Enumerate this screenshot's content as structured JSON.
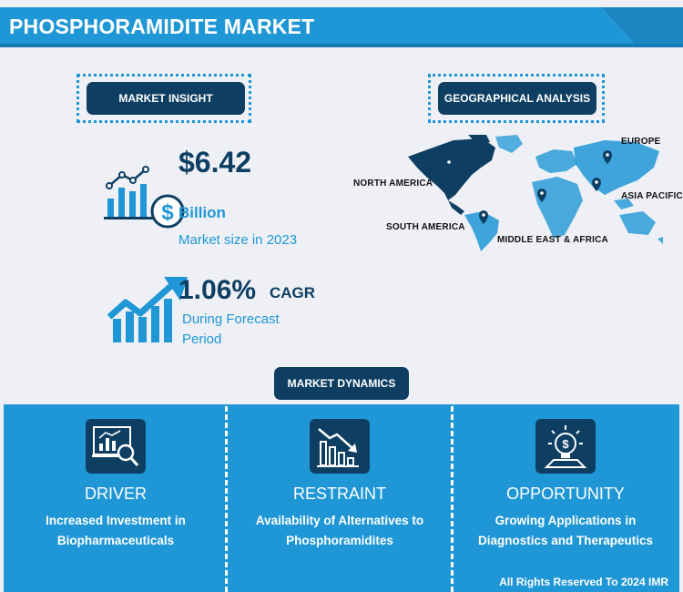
{
  "header": {
    "title": "PHOSPHORAMIDITE MARKET"
  },
  "market_insight": {
    "label": "MARKET INSIGHT",
    "market_size": {
      "value": "$6.42",
      "unit": "Billion",
      "caption": "Market size in 2023",
      "icon": "bar-chart-dollar-icon"
    },
    "cagr": {
      "value": "1.06%",
      "unit": "CAGR",
      "caption_line1": "During Forecast",
      "caption_line2": "Period",
      "icon": "growth-arrow-icon"
    }
  },
  "geographical_analysis": {
    "label": "GEOGRAPHICAL ANALYSIS",
    "regions": [
      "NORTH AMERICA",
      "EUROPE",
      "ASIA PACIFIC",
      "SOUTH AMERICA",
      "MIDDLE EAST & AFRICA"
    ]
  },
  "market_dynamics": {
    "label": "MARKET DYNAMICS",
    "columns": [
      {
        "heading": "DRIVER",
        "line1": "Increased Investment in",
        "line2": "Biopharmaceuticals",
        "icon": "chart-magnifier-icon"
      },
      {
        "heading": "RESTRAINT",
        "line1": "Availability of Alternatives to",
        "line2": "Phosphoramidites",
        "icon": "declining-bars-icon"
      },
      {
        "heading": "OPPORTUNITY",
        "line1": "Growing Applications in",
        "line2": "Diagnostics and Therapeutics",
        "icon": "lightbulb-dollar-icon"
      }
    ]
  },
  "footer": {
    "text": "All Rights Reserved To 2024 IMR"
  },
  "colors": {
    "navy": "#0e3f63",
    "blue": "#1f97d6",
    "background": "#eef0f5"
  }
}
